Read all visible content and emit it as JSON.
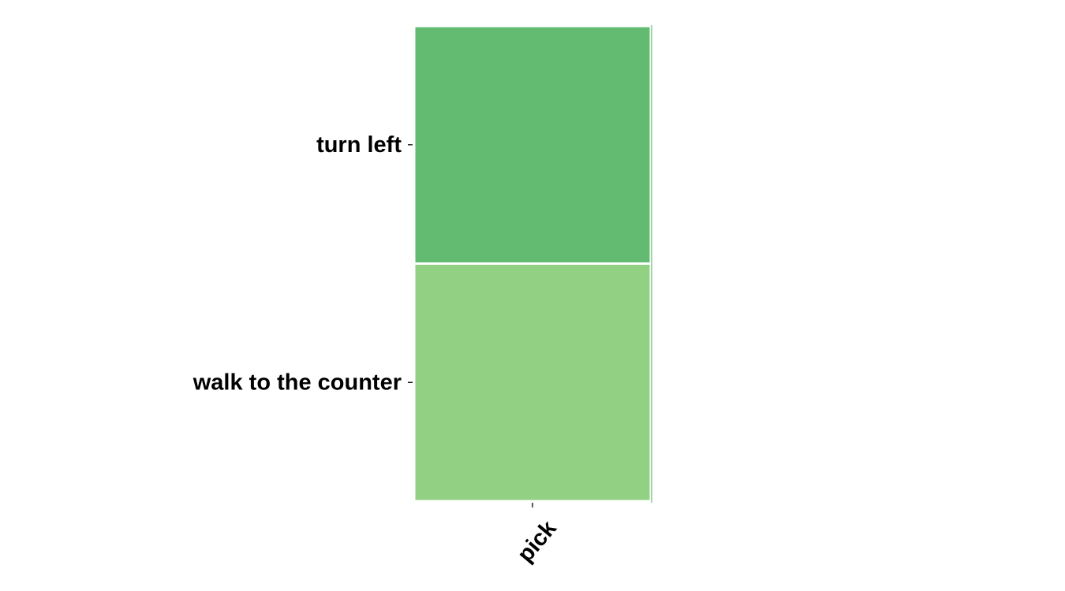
{
  "chart_data": {
    "type": "heatmap",
    "x_categories": [
      "pick"
    ],
    "y_categories": [
      "turn left",
      "walk to the counter"
    ],
    "cells": [
      {
        "x": "pick",
        "y": "turn left",
        "color": "#62bb71"
      },
      {
        "x": "pick",
        "y": "walk to the counter",
        "color": "#92d084"
      }
    ],
    "colors": {
      "cell_border": "#ffffff",
      "right_rule": "#62bb71"
    },
    "colorbar": false,
    "grid": false
  }
}
